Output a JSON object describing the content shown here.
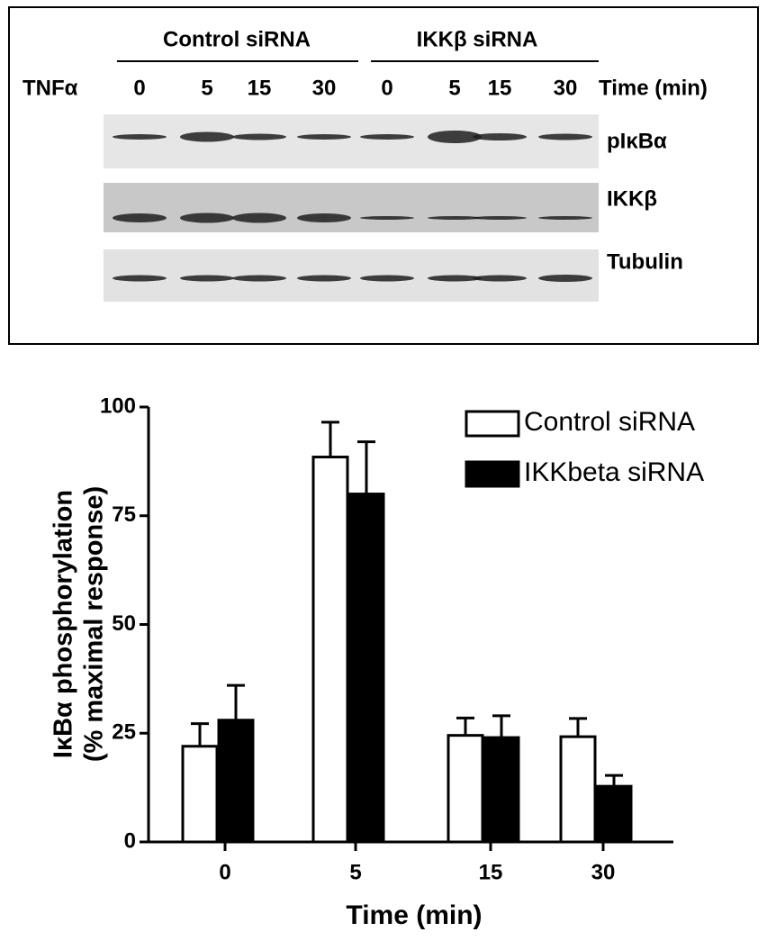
{
  "blot": {
    "groups": [
      "Control siRNA",
      "IKKβ siRNA"
    ],
    "treatment": "TNFα",
    "lanes": [
      "0",
      "5",
      "15",
      "30",
      "0",
      "5",
      "15",
      "30"
    ],
    "lane_unit": "Time (min)",
    "bands": [
      "pIκBα",
      "IKKβ",
      "Tubulin"
    ]
  },
  "chart_data": {
    "type": "bar",
    "xlabel": "Time (min)",
    "ylabel": [
      "IκBα phosphorylation",
      "(% maximal response)"
    ],
    "categories": [
      "0",
      "5",
      "15",
      "30"
    ],
    "series": [
      {
        "name": "Control siRNA",
        "color": "#ffffff",
        "values": [
          22,
          88.5,
          24.5,
          24.2
        ],
        "errors": [
          5.2,
          8,
          4,
          4.2
        ]
      },
      {
        "name": "IKKbeta siRNA",
        "color": "#000000",
        "values": [
          28,
          80,
          24,
          12.8
        ],
        "errors": [
          8,
          12,
          5,
          2.5
        ]
      }
    ],
    "ylim": [
      0,
      100
    ],
    "yticks": [
      0,
      25,
      50,
      75,
      100
    ],
    "grid": false,
    "legend": "top-right"
  }
}
